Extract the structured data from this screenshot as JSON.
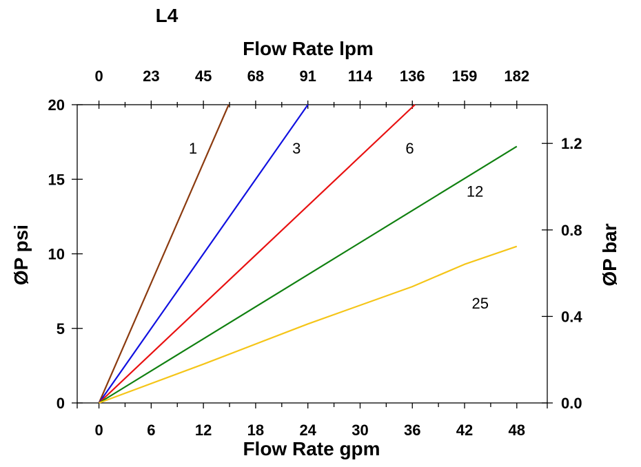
{
  "chart_data": {
    "type": "line",
    "title": "L4",
    "xlabel": "Flow Rate gpm",
    "x2label": "Flow Rate lpm",
    "ylabel": "ØP psi",
    "y2label": "ØP bar",
    "xlim": [
      -2.5,
      51.5
    ],
    "ylim": [
      0,
      20
    ],
    "y2lim": [
      0,
      1.379
    ],
    "x_ticks": [
      0,
      6,
      12,
      18,
      24,
      30,
      36,
      42,
      48
    ],
    "x_tick_labels": [
      "0",
      "6",
      "12",
      "18",
      "24",
      "30",
      "36",
      "42",
      "48"
    ],
    "x2_tick_labels": [
      "0",
      "23",
      "45",
      "68",
      "91",
      "114",
      "136",
      "159",
      "182"
    ],
    "y_ticks": [
      0,
      5,
      10,
      15,
      20
    ],
    "y_tick_labels": [
      "0",
      "5",
      "10",
      "15",
      "20"
    ],
    "y2_ticks": [
      0.0,
      0.4,
      0.8,
      1.2
    ],
    "y2_tick_labels": [
      "0.0",
      "0.4",
      "0.8",
      "1.2"
    ],
    "grid": false,
    "series": [
      {
        "name": "1",
        "color": "#8B3A0F",
        "x": [
          0,
          14.9
        ],
        "y": [
          0,
          20
        ],
        "label_at": [
          10.8,
          17.1
        ]
      },
      {
        "name": "3",
        "color": "#1010E0",
        "x": [
          0,
          24
        ],
        "y": [
          0,
          20
        ],
        "label_at": [
          22.7,
          17.1
        ]
      },
      {
        "name": "6",
        "color": "#E81010",
        "x": [
          0,
          36.3
        ],
        "y": [
          0,
          20
        ],
        "label_at": [
          35.7,
          17.1
        ]
      },
      {
        "name": "12",
        "color": "#108010",
        "x": [
          0,
          12,
          24,
          36,
          48
        ],
        "y": [
          0,
          4.3,
          8.6,
          12.9,
          17.2
        ],
        "label_at": [
          43.2,
          14.2
        ]
      },
      {
        "name": "25",
        "color": "#F5C518",
        "x": [
          0,
          12,
          24,
          36,
          42,
          48
        ],
        "y": [
          0,
          2.6,
          5.3,
          7.8,
          9.3,
          10.5
        ],
        "label_at": [
          43.8,
          6.7
        ]
      }
    ]
  }
}
